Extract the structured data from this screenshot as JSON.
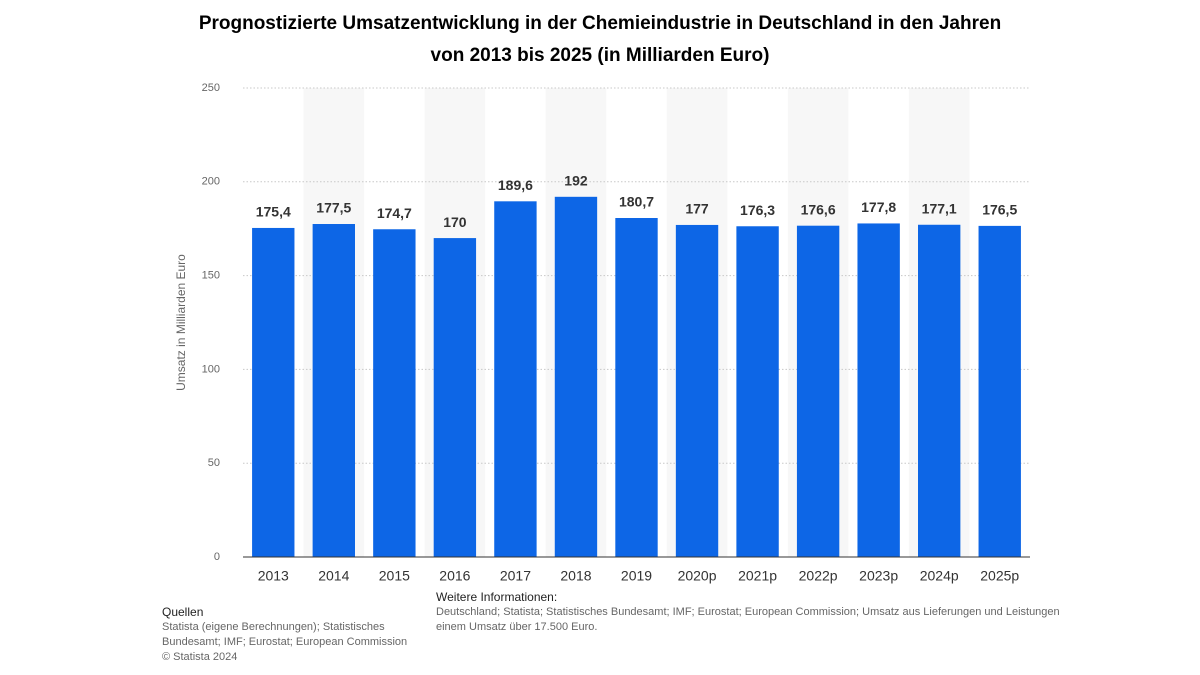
{
  "chart_data": {
    "type": "bar",
    "title": "Prognostizierte Umsatzentwicklung in der Chemieindustrie in Deutschland in den Jahren von 2013 bis 2025 (in Milliarden Euro)",
    "y_label": "Umsatz in Milliarden Euro",
    "categories": [
      "2013",
      "2014",
      "2015",
      "2016",
      "2017",
      "2018",
      "2019",
      "2020p",
      "2021p",
      "2022p",
      "2023p",
      "2024p",
      "2025p"
    ],
    "values": [
      175.4,
      177.5,
      174.7,
      170,
      189.6,
      192,
      180.7,
      177,
      176.3,
      176.6,
      177.8,
      177.1,
      176.5
    ],
    "value_labels": [
      "175,4",
      "177,5",
      "174,7",
      "170",
      "189,6",
      "192",
      "180,7",
      "177",
      "176,3",
      "176,6",
      "177,8",
      "177,1",
      "176,5"
    ],
    "color": "#0d66e6",
    "ylim": [
      0,
      250
    ],
    "yticks": [
      0,
      50,
      100,
      150,
      200,
      250
    ],
    "grid": true
  },
  "footer": {
    "sources_title": "Quellen",
    "sources": "Statista (eigene Berechnungen); Statistisches Bundesamt; IMF; Eurostat; European Commission",
    "copyright": "© Statista 2024",
    "info_title": "Weitere Informationen:",
    "info_lines": [
      "Deutschland; Statista; Statistisches Bundesamt; IMF; Eurostat; European Commission; Umsatz aus Lieferungen und Leistungen",
      "einem Umsatz über 17.500 Euro."
    ]
  }
}
